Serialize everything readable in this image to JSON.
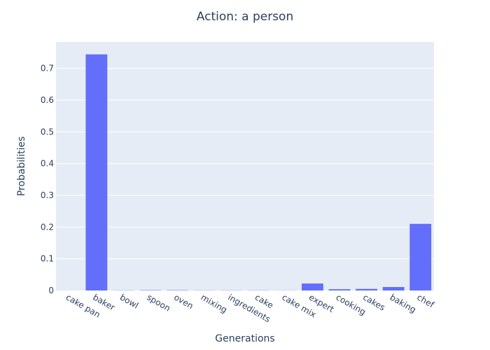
{
  "chart_data": {
    "type": "bar",
    "title": "Action: a person",
    "xlabel": "Generations",
    "ylabel": "Probabilities",
    "categories": [
      "cake pan",
      "baker",
      "bowl",
      "spoon",
      "oven",
      "mixing",
      "ingredients",
      "cake",
      "cake mix",
      "expert",
      "cooking",
      "cakes",
      "baking",
      "chef"
    ],
    "values": [
      0.0,
      0.744,
      0.0005,
      0.001,
      0.001,
      0.0005,
      0.0005,
      0.0005,
      0.0003,
      0.022,
      0.004,
      0.005,
      0.011,
      0.21
    ],
    "yticks": [
      0,
      0.1,
      0.2,
      0.3,
      0.4,
      0.5,
      0.6,
      0.7
    ],
    "ylim": [
      0,
      0.783
    ],
    "grid": true,
    "colors": {
      "bar": "#636efa",
      "plot_bg": "#e5ecf6",
      "grid": "#ffffff",
      "text": "#2a3f5f"
    }
  }
}
